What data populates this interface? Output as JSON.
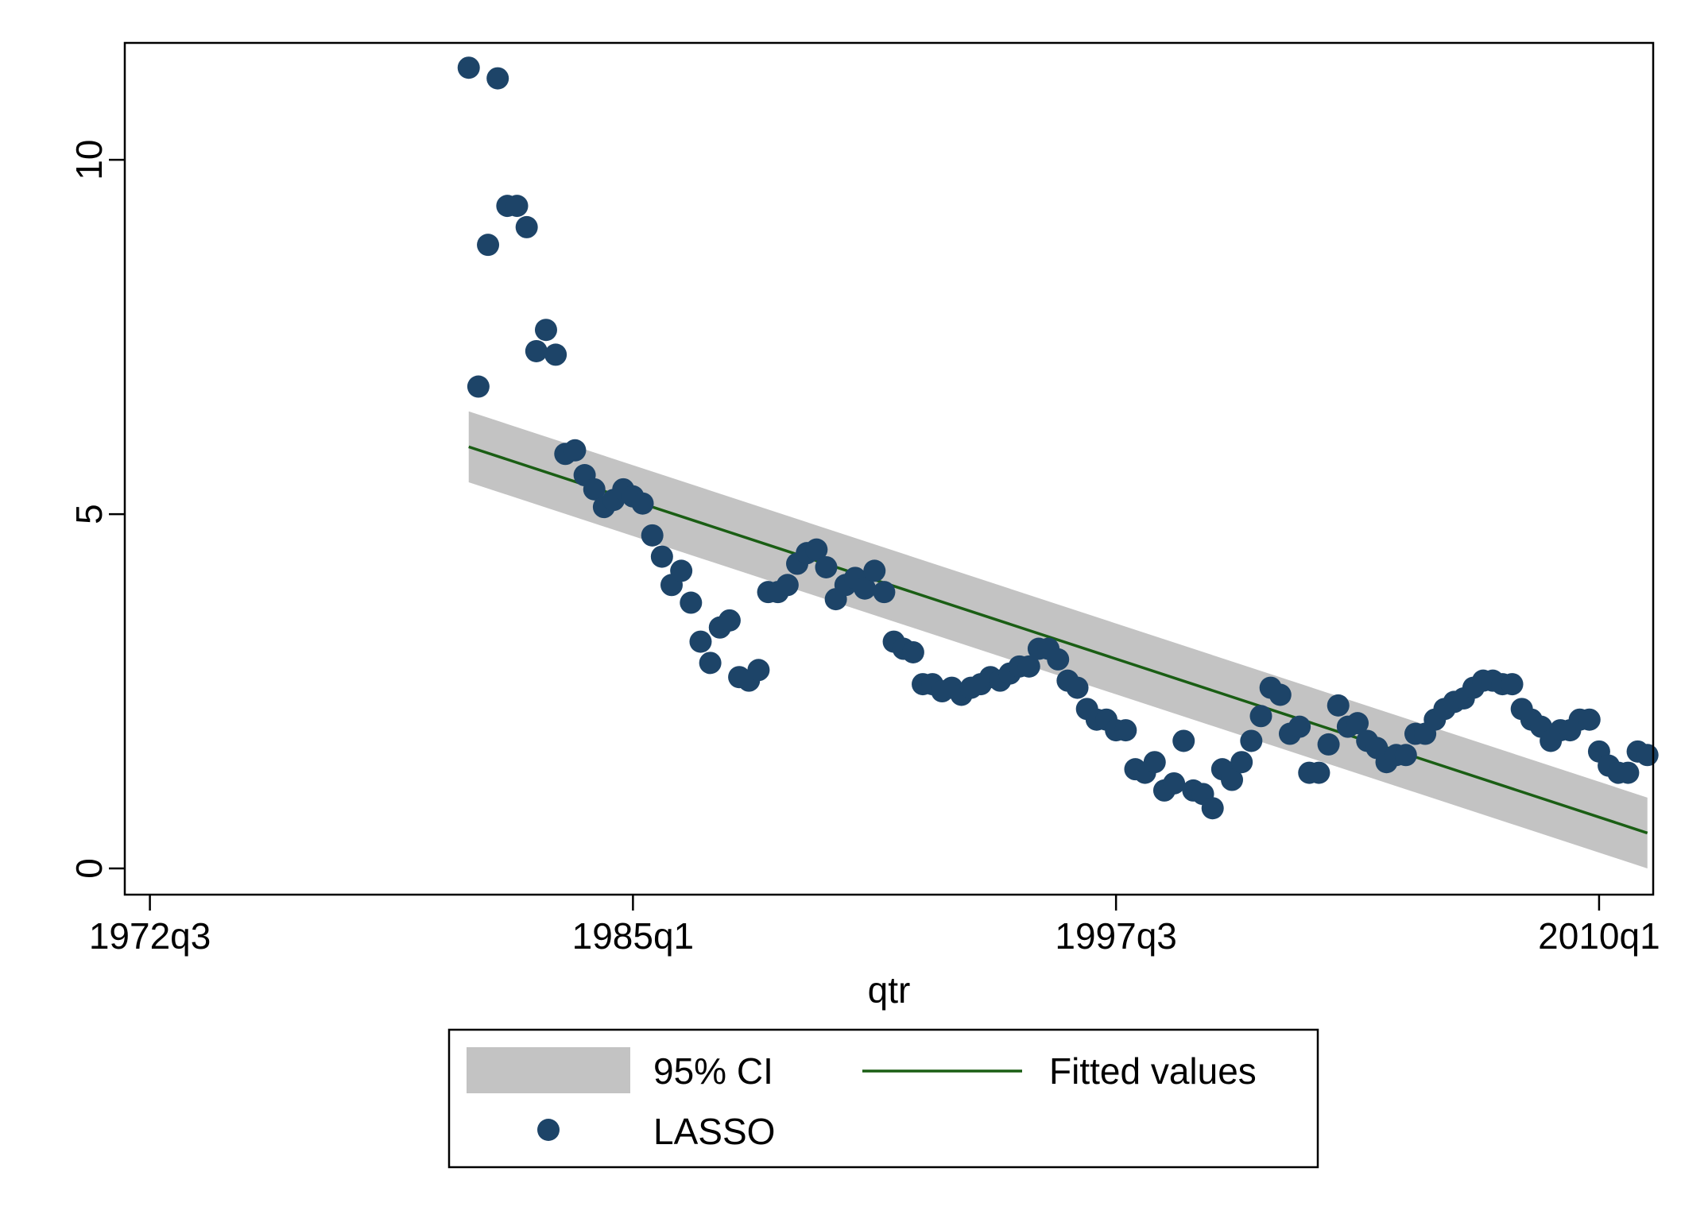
{
  "chart_data": {
    "type": "scatter",
    "xlabel": "qtr",
    "ylabel": "",
    "x_ticks": [
      "1972q3",
      "1985q1",
      "1997q3",
      "2010q1"
    ],
    "x_tick_values": [
      1972.5,
      1985.0,
      1997.5,
      2010.0
    ],
    "y_ticks": [
      "0",
      "5",
      "10"
    ],
    "y_tick_values": [
      0,
      5,
      10
    ],
    "xlim": [
      1971.85,
      2011.4
    ],
    "ylim": [
      -0.37,
      11.65
    ],
    "grid": false,
    "legend_position": "bottom",
    "colors": {
      "markers": "#1d4468",
      "fit_line": "#1a5e14",
      "ci_band": "#c3c3c3",
      "axis": "#000000"
    },
    "legend": [
      {
        "label": "95% CI",
        "symbol": "band"
      },
      {
        "label": "Fitted values",
        "symbol": "line"
      },
      {
        "label": "LASSO",
        "symbol": "marker"
      }
    ],
    "series": [
      {
        "name": "LASSO",
        "kind": "scatter",
        "x": [
          1980.75,
          1981.0,
          1981.25,
          1981.5,
          1981.75,
          1982.0,
          1982.25,
          1982.5,
          1982.75,
          1983.0,
          1983.25,
          1983.5,
          1983.75,
          1984.0,
          1984.25,
          1984.5,
          1984.75,
          1985.0,
          1985.25,
          1985.5,
          1985.75,
          1986.0,
          1986.25,
          1986.5,
          1986.75,
          1987.0,
          1987.25,
          1987.5,
          1987.75,
          1988.0,
          1988.25,
          1988.5,
          1988.75,
          1989.0,
          1989.25,
          1989.5,
          1989.75,
          1990.0,
          1990.25,
          1990.5,
          1990.75,
          1991.0,
          1991.25,
          1991.5,
          1991.75,
          1992.0,
          1992.25,
          1992.5,
          1992.75,
          1993.0,
          1993.25,
          1993.5,
          1993.75,
          1994.0,
          1994.25,
          1994.5,
          1994.75,
          1995.0,
          1995.25,
          1995.5,
          1995.75,
          1996.0,
          1996.25,
          1996.5,
          1996.75,
          1997.0,
          1997.25,
          1997.5,
          1997.75,
          1998.0,
          1998.25,
          1998.5,
          1998.75,
          1999.0,
          1999.25,
          1999.5,
          1999.75,
          2000.0,
          2000.25,
          2000.5,
          2000.75,
          2001.0,
          2001.25,
          2001.5,
          2001.75,
          2002.0,
          2002.25,
          2002.5,
          2002.75,
          2003.0,
          2003.25,
          2003.5,
          2003.75,
          2004.0,
          2004.25,
          2004.5,
          2004.75,
          2005.0,
          2005.25,
          2005.5,
          2005.75,
          2006.0,
          2006.25,
          2006.5,
          2006.75,
          2007.0,
          2007.25,
          2007.5,
          2007.75,
          2008.0,
          2008.25,
          2008.5,
          2008.75,
          2009.0,
          2009.25,
          2009.5,
          2009.75,
          2010.0,
          2010.25,
          2010.5,
          2010.75,
          2011.0,
          2011.25
        ],
        "y": [
          11.3,
          6.8,
          8.8,
          11.15,
          9.35,
          9.35,
          9.05,
          7.3,
          7.6,
          7.25,
          5.85,
          5.9,
          5.55,
          5.35,
          5.1,
          5.2,
          5.35,
          5.25,
          5.15,
          4.7,
          4.4,
          4.0,
          4.2,
          3.75,
          3.2,
          2.9,
          3.4,
          3.5,
          2.7,
          2.65,
          2.8,
          3.9,
          3.9,
          4.0,
          4.3,
          4.45,
          4.5,
          4.25,
          3.8,
          4.0,
          4.1,
          3.95,
          4.2,
          3.9,
          3.2,
          3.1,
          3.05,
          2.6,
          2.6,
          2.5,
          2.55,
          2.45,
          2.55,
          2.6,
          2.7,
          2.65,
          2.75,
          2.85,
          2.85,
          3.1,
          3.1,
          2.95,
          2.65,
          2.55,
          2.25,
          2.1,
          2.1,
          1.95,
          1.95,
          1.4,
          1.35,
          1.5,
          1.1,
          1.2,
          1.8,
          1.1,
          1.05,
          0.85,
          1.4,
          1.25,
          1.5,
          1.8,
          2.15,
          2.55,
          2.45,
          1.9,
          2.0,
          1.35,
          1.35,
          1.75,
          2.3,
          2.0,
          2.05,
          1.8,
          1.7,
          1.5,
          1.6,
          1.6,
          1.9,
          1.9,
          2.1,
          2.25,
          2.35,
          2.4,
          2.55,
          2.65,
          2.65,
          2.6,
          2.6,
          2.25,
          2.1,
          2.0,
          1.8,
          1.95,
          1.95,
          2.1,
          2.1,
          1.65,
          1.45,
          1.35,
          1.35,
          1.65,
          1.6
        ]
      },
      {
        "name": "Fitted values",
        "kind": "line",
        "x": [
          1980.75,
          2011.25
        ],
        "y": [
          5.95,
          0.5
        ]
      },
      {
        "name": "95% CI",
        "kind": "band",
        "x": [
          1980.75,
          2011.25
        ],
        "lower": [
          5.45,
          0.0
        ],
        "upper": [
          6.45,
          1.0
        ]
      }
    ]
  }
}
